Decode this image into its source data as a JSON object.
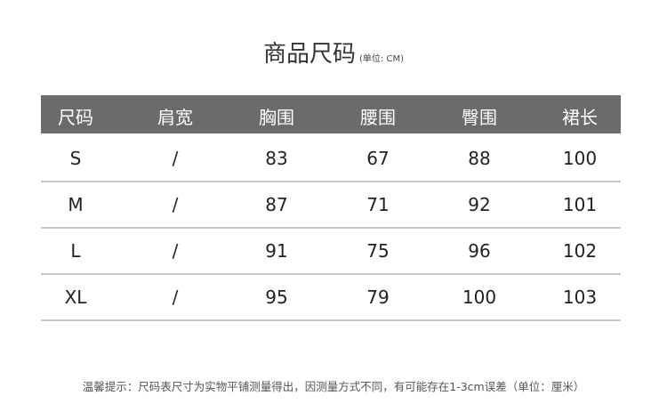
{
  "title": {
    "main": "商品尺码",
    "unit": "(单位: CM)"
  },
  "table": {
    "headers": [
      "尺码",
      "肩宽",
      "胸围",
      "腰围",
      "臀围",
      "裙长"
    ],
    "rows": [
      [
        "S",
        "/",
        "83",
        "67",
        "88",
        "100"
      ],
      [
        "M",
        "/",
        "87",
        "71",
        "92",
        "101"
      ],
      [
        "L",
        "/",
        "91",
        "75",
        "96",
        "102"
      ],
      [
        "XL",
        "/",
        "95",
        "79",
        "100",
        "103"
      ]
    ]
  },
  "note": "温馨提示：尺码表尺寸为实物平铺测量得出，因测量方式不同，有可能存在1-3cm误差（单位：厘米）",
  "colors": {
    "header_bg": "#6b6b6b",
    "rule": "#c8c8c8"
  }
}
